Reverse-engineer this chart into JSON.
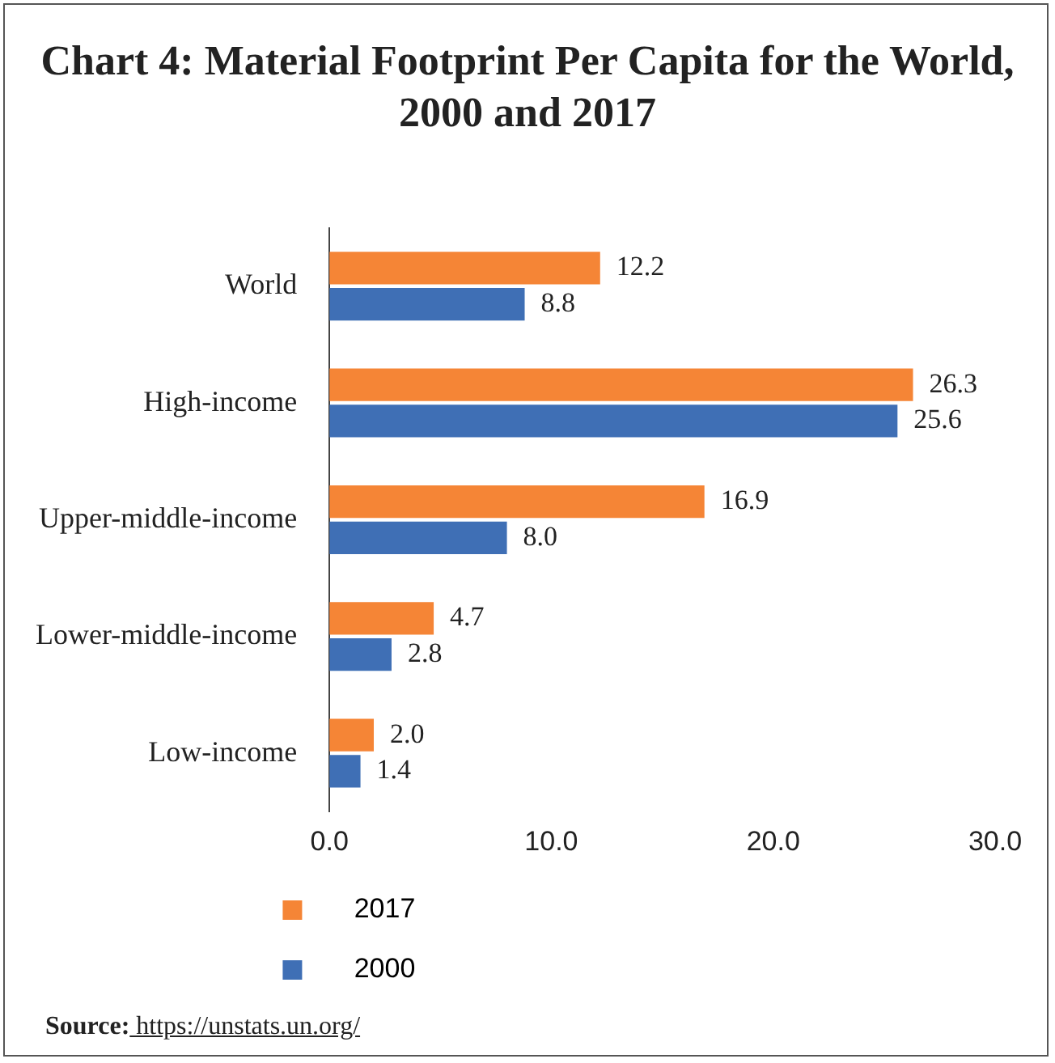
{
  "chart_data": {
    "type": "bar",
    "orientation": "horizontal",
    "title": "Chart 4: Material Footprint Per Capita for the World, 2000 and 2017",
    "categories": [
      "World",
      "High-income",
      "Upper-middle-income",
      "Lower-middle-income",
      "Low-income"
    ],
    "series": [
      {
        "name": "2017",
        "color": "#f58536",
        "values": [
          12.2,
          26.3,
          16.9,
          4.7,
          2.0
        ],
        "value_labels": [
          "12.2",
          "26.3",
          "16.9",
          "4.7",
          "2.0"
        ]
      },
      {
        "name": "2000",
        "color": "#3f6fb5",
        "values": [
          8.8,
          25.6,
          8.0,
          2.8,
          1.4
        ],
        "value_labels": [
          "8.8",
          "25.6",
          "8.0",
          "2.8",
          "1.4"
        ]
      }
    ],
    "xlim": [
      0,
      30
    ],
    "xticks": [
      {
        "value": 0,
        "label": "0.0"
      },
      {
        "value": 10,
        "label": "10.0"
      },
      {
        "value": 20,
        "label": "20.0"
      },
      {
        "value": 30,
        "label": "30.0"
      }
    ],
    "grid": false,
    "legend": "bottom",
    "annotations": [
      "Source: https://unstats.un.org/"
    ]
  }
}
